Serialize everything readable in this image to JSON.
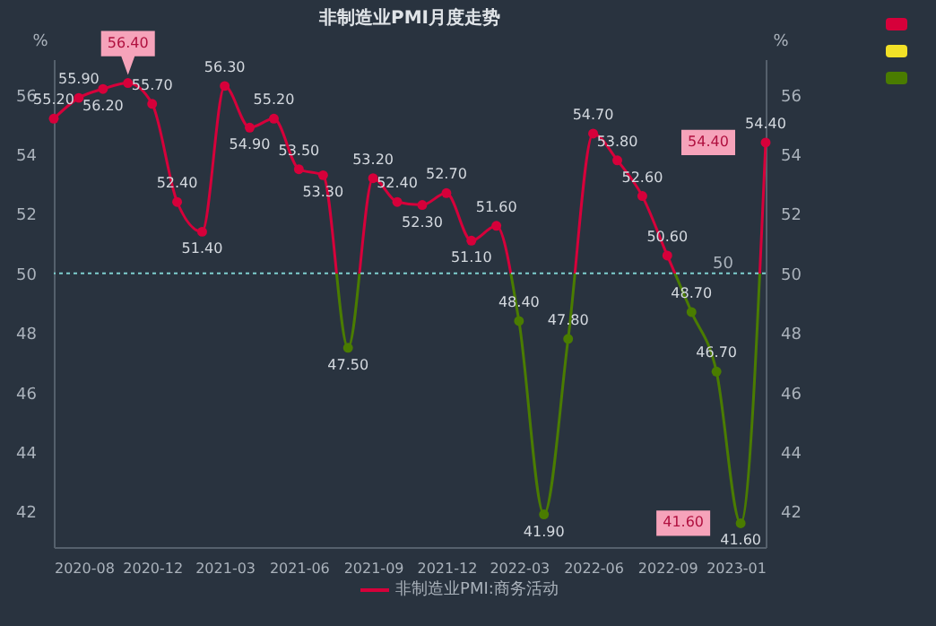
{
  "chart_data": {
    "type": "line",
    "title": "非制造业PMI月度走势",
    "ylabel": "%",
    "y2label": "%",
    "x": [
      "2020-08",
      "2020-09",
      "2020-10",
      "2020-11",
      "2020-12",
      "2021-01",
      "2021-02",
      "2021-03",
      "2021-04",
      "2021-05",
      "2021-06",
      "2021-07",
      "2021-08",
      "2021-09",
      "2021-10",
      "2021-11",
      "2021-12",
      "2022-01",
      "2022-02",
      "2022-03",
      "2022-04",
      "2022-05",
      "2022-06",
      "2022-07",
      "2022-08",
      "2022-09",
      "2022-10",
      "2022-11",
      "2022-12",
      "2023-01"
    ],
    "series": [
      {
        "name": "非制造业PMI:商务活动",
        "color": "#d6003a",
        "values": [
          55.2,
          55.9,
          56.2,
          56.4,
          55.7,
          52.4,
          51.4,
          56.3,
          54.9,
          55.2,
          53.5,
          53.3,
          47.5,
          53.2,
          52.4,
          52.3,
          52.7,
          51.1,
          51.6,
          48.4,
          41.9,
          47.8,
          54.7,
          53.8,
          52.6,
          50.6,
          48.7,
          46.7,
          41.6,
          54.4
        ],
        "colors": [
          "#d6003a",
          "#d6003a",
          "#d6003a",
          "#d6003a",
          "#d6003a",
          "#d6003a",
          "#d6003a",
          "#d6003a",
          "#d6003a",
          "#d6003a",
          "#d6003a",
          "#d6003a",
          "#4a7c00",
          "#d6003a",
          "#d6003a",
          "#d6003a",
          "#d6003a",
          "#d6003a",
          "#d6003a",
          "#4a7c00",
          "#4a7c00",
          "#4a7c00",
          "#d6003a",
          "#d6003a",
          "#d6003a",
          "#d6003a",
          "#4a7c00",
          "#4a7c00",
          "#4a7c00",
          "#d6003a"
        ],
        "value_labels": [
          "55.20",
          "55.90",
          "56.20",
          null,
          "55.70",
          "52.40",
          "51.40",
          "56.30",
          "54.90",
          "55.20",
          "53.50",
          "53.30",
          "47.50",
          "53.20",
          "52.40",
          "52.30",
          "52.70",
          "51.10",
          "51.60",
          "48.40",
          "41.90",
          "47.80",
          "54.70",
          "53.80",
          "52.60",
          "50.60",
          "48.70",
          "46.70",
          "41.60",
          "54.40"
        ]
      }
    ],
    "xlim": [
      "2020-08",
      "2023-01"
    ],
    "xticks": [
      "2020-08",
      "2020-12",
      "2021-03",
      "2021-06",
      "2021-09",
      "2021-12",
      "2022-03",
      "2022-06",
      "2022-09",
      "2023-01"
    ],
    "ylim": [
      40.8,
      57.2
    ],
    "yticks": [
      42,
      44,
      46,
      48,
      50,
      52,
      54,
      56
    ],
    "y2lim": [
      40.8,
      57.2
    ],
    "y2ticks": [
      42,
      44,
      46,
      48,
      50,
      52,
      54,
      56
    ],
    "ref_lines": [
      {
        "axis": "y",
        "value": 50,
        "label": "50",
        "color": "#7fd0d0",
        "line_style": "dotted"
      }
    ],
    "annotations": [
      {
        "text": "56.40",
        "x": "2020-11",
        "y": 56.4
      },
      {
        "text": "41.60",
        "x": "2022-12",
        "y": 41.6
      },
      {
        "text": "54.40",
        "x": "2023-01",
        "y": 54.4
      }
    ],
    "marker": "circle",
    "legend": "bottom",
    "grid": false
  }
}
